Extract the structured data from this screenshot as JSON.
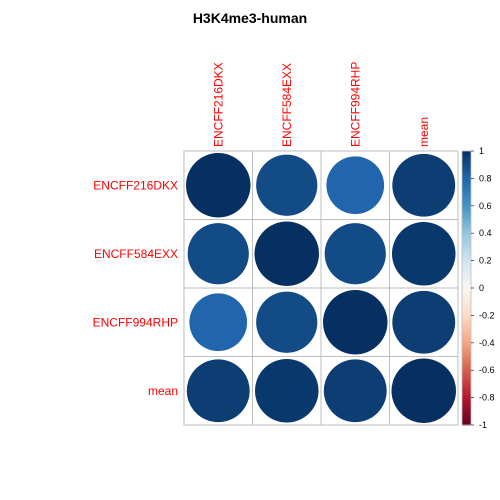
{
  "chart_data": {
    "type": "heatmap",
    "title": "H3K4me3-human",
    "rows": [
      "ENCFF216DKX",
      "ENCFF584EXX",
      "ENCFF994RHP",
      "mean"
    ],
    "columns": [
      "ENCFF216DKX",
      "ENCFF584EXX",
      "ENCFF994RHP",
      "mean"
    ],
    "values": [
      [
        1.0,
        0.9,
        0.8,
        0.95
      ],
      [
        0.9,
        1.0,
        0.9,
        0.97
      ],
      [
        0.8,
        0.9,
        1.0,
        0.95
      ],
      [
        0.95,
        0.97,
        0.95,
        1.0
      ]
    ],
    "glyph": "circle",
    "colorbar": {
      "range": [
        -1,
        1
      ],
      "ticks": [
        "1",
        "0.8",
        "0.6",
        "0.4",
        "0.2",
        "0",
        "-0.2",
        "-0.4",
        "-0.6",
        "-0.8",
        "-1"
      ],
      "colors": {
        "neg": "#67001f",
        "mid": "#f7f7f7",
        "pos": "#053061"
      }
    },
    "grid": true,
    "label_color": "#ff0000"
  }
}
